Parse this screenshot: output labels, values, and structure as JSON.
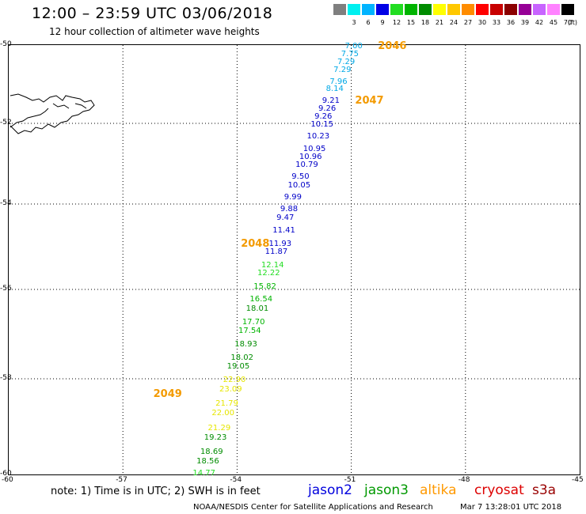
{
  "header": {
    "title": "12:00 – 23:59 UTC 03/06/2018",
    "subtitle": "12 hour collection of altimeter wave heights"
  },
  "legend": {
    "unit": "(ft)",
    "bins": [
      {
        "label": "",
        "color": "#7f7f7f"
      },
      {
        "label": "3",
        "color": "#00f0f0"
      },
      {
        "label": "6",
        "color": "#00b4ff"
      },
      {
        "label": "9",
        "color": "#0000e6"
      },
      {
        "label": "12",
        "color": "#22dd22"
      },
      {
        "label": "15",
        "color": "#00b400"
      },
      {
        "label": "18",
        "color": "#008c00"
      },
      {
        "label": "21",
        "color": "#ffff00"
      },
      {
        "label": "24",
        "color": "#ffc800"
      },
      {
        "label": "27",
        "color": "#ff8c00"
      },
      {
        "label": "30",
        "color": "#ff0000"
      },
      {
        "label": "33",
        "color": "#c80000"
      },
      {
        "label": "36",
        "color": "#8b0000"
      },
      {
        "label": "39",
        "color": "#960096"
      },
      {
        "label": "42",
        "color": "#c864ff"
      },
      {
        "label": "45",
        "color": "#ff82ff"
      },
      {
        "label": "70",
        "color": "#000000"
      }
    ]
  },
  "axes": {
    "lat_labels": [
      "-50",
      "-52",
      "-54",
      "-56",
      "-58",
      "-60"
    ],
    "lon_labels": [
      "-60",
      "-57",
      "-54",
      "-51",
      "-48",
      "-45"
    ]
  },
  "chart_data": {
    "type": "scatter",
    "x_unit": "degrees longitude",
    "y_unit": "degrees latitude",
    "value_unit": "ft",
    "xlim": [
      -60,
      -45
    ],
    "ylim": [
      -60,
      -50
    ],
    "passes": [
      {
        "label": "2046",
        "lon": -50.3,
        "lat": -50.0
      },
      {
        "label": "2047",
        "lon": -50.9,
        "lat": -51.4
      },
      {
        "label": "2048",
        "lon": -53.9,
        "lat": -54.9
      },
      {
        "label": "2049",
        "lon": -56.2,
        "lat": -58.3
      }
    ],
    "points": [
      {
        "lat": -50.0,
        "lon": -51.0,
        "value": "7.00",
        "color": "#00a8e6"
      },
      {
        "lat": -50.2,
        "lon": -51.1,
        "value": "7.75",
        "color": "#00a8e6"
      },
      {
        "lat": -50.4,
        "lon": -51.2,
        "value": "7.29",
        "color": "#00a8e6"
      },
      {
        "lat": -50.6,
        "lon": -51.3,
        "value": "7.29",
        "color": "#00a8e6"
      },
      {
        "lat": -50.9,
        "lon": -51.4,
        "value": "7.96",
        "color": "#00a8e6"
      },
      {
        "lat": -51.1,
        "lon": -51.5,
        "value": "8.14",
        "color": "#00a8e6"
      },
      {
        "lat": -51.4,
        "lon": -51.6,
        "value": "9.21",
        "color": "#0000c8"
      },
      {
        "lat": -51.6,
        "lon": -51.7,
        "value": "9.26",
        "color": "#0000c8"
      },
      {
        "lat": -51.8,
        "lon": -51.8,
        "value": "9.26",
        "color": "#0000c8"
      },
      {
        "lat": -52.0,
        "lon": -51.9,
        "value": "10.15",
        "color": "#0000c8"
      },
      {
        "lat": -52.3,
        "lon": -52.0,
        "value": "10.23",
        "color": "#0000c8"
      },
      {
        "lat": -52.6,
        "lon": -52.1,
        "value": "10.95",
        "color": "#0000c8"
      },
      {
        "lat": -52.8,
        "lon": -52.2,
        "value": "10.96",
        "color": "#0000c8"
      },
      {
        "lat": -53.0,
        "lon": -52.3,
        "value": "10.79",
        "color": "#0000c8"
      },
      {
        "lat": -53.3,
        "lon": -52.4,
        "value": "9.50",
        "color": "#0000c8"
      },
      {
        "lat": -53.5,
        "lon": -52.5,
        "value": "10.05",
        "color": "#0000c8"
      },
      {
        "lat": -53.8,
        "lon": -52.6,
        "value": "9.99",
        "color": "#0000c8"
      },
      {
        "lat": -54.1,
        "lon": -52.7,
        "value": "9.88",
        "color": "#0000c8"
      },
      {
        "lat": -54.3,
        "lon": -52.8,
        "value": "9.47",
        "color": "#0000c8"
      },
      {
        "lat": -54.6,
        "lon": -52.9,
        "value": "11.41",
        "color": "#0000c8"
      },
      {
        "lat": -54.9,
        "lon": -53.0,
        "value": "11.93",
        "color": "#0000c8"
      },
      {
        "lat": -55.1,
        "lon": -53.1,
        "value": "11.87",
        "color": "#0000c8"
      },
      {
        "lat": -55.4,
        "lon": -53.2,
        "value": "12.14",
        "color": "#22dd22"
      },
      {
        "lat": -55.6,
        "lon": -53.3,
        "value": "12.22",
        "color": "#22dd22"
      },
      {
        "lat": -55.9,
        "lon": -53.4,
        "value": "15.82",
        "color": "#00b400"
      },
      {
        "lat": -56.2,
        "lon": -53.5,
        "value": "16.54",
        "color": "#00b400"
      },
      {
        "lat": -56.4,
        "lon": -53.6,
        "value": "18.01",
        "color": "#008c00"
      },
      {
        "lat": -56.7,
        "lon": -53.7,
        "value": "17.70",
        "color": "#00b400"
      },
      {
        "lat": -56.9,
        "lon": -53.8,
        "value": "17.54",
        "color": "#00b400"
      },
      {
        "lat": -57.2,
        "lon": -53.9,
        "value": "18.93",
        "color": "#008c00"
      },
      {
        "lat": -57.5,
        "lon": -54.0,
        "value": "18.02",
        "color": "#008c00"
      },
      {
        "lat": -57.7,
        "lon": -54.1,
        "value": "19.05",
        "color": "#008c00"
      },
      {
        "lat": -58.0,
        "lon": -54.2,
        "value": "22.90",
        "color": "#e6e600"
      },
      {
        "lat": -58.2,
        "lon": -54.3,
        "value": "23.09",
        "color": "#e6e600"
      },
      {
        "lat": -58.5,
        "lon": -54.4,
        "value": "21.79",
        "color": "#e6e600"
      },
      {
        "lat": -58.7,
        "lon": -54.5,
        "value": "22.00",
        "color": "#e6e600"
      },
      {
        "lat": -59.0,
        "lon": -54.6,
        "value": "21.29",
        "color": "#e6e600"
      },
      {
        "lat": -59.2,
        "lon": -54.7,
        "value": "19.23",
        "color": "#008c00"
      },
      {
        "lat": -59.5,
        "lon": -54.8,
        "value": "18.69",
        "color": "#008c00"
      },
      {
        "lat": -59.7,
        "lon": -54.9,
        "value": "18.56",
        "color": "#008c00"
      },
      {
        "lat": -59.95,
        "lon": -55.0,
        "value": "14.77",
        "color": "#22dd22"
      }
    ]
  },
  "footer": {
    "note": "note: 1) Time is in UTC; 2) SWH is in feet",
    "satellites": [
      {
        "name": "jason2",
        "color": "#0000dd"
      },
      {
        "name": "jason3",
        "color": "#009900"
      },
      {
        "name": "altika",
        "color": "#ff9900"
      },
      {
        "name": "cryosat",
        "color": "#dd0000"
      },
      {
        "name": "s3a",
        "color": "#990000"
      }
    ],
    "credit": "NOAA/NESDIS Center for Satellite Applications and Research",
    "timestamp": "Mar  7 13:28:01 UTC 2018"
  }
}
